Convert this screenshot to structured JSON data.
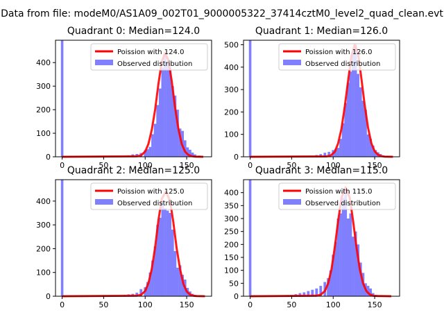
{
  "figure": {
    "suptitle": "Data from file: modeM0/AS1A09_002T01_9000005322_37414cztM0_level2_quad_clean.evt"
  },
  "chart_data": [
    {
      "type": "bar",
      "title": "Quadrant 0: Median=124.0",
      "xlim": [
        -8,
        180
      ],
      "ylim": [
        0,
        495
      ],
      "xticks": [
        0,
        50,
        100,
        150
      ],
      "yticks": [
        0,
        100,
        200,
        300,
        400
      ],
      "xlabel": "",
      "ylabel": "",
      "legend": {
        "position": "top-right",
        "entries": [
          {
            "label": "Poission with 124.0",
            "kind": "line",
            "color": "#ff0000"
          },
          {
            "label": "Observed distribution",
            "kind": "patch",
            "color": "#8080ff"
          }
        ]
      },
      "poisson_mean": 124.0,
      "spike": {
        "x": 0,
        "value": 495
      },
      "bins": [
        {
          "x": 80,
          "value": 6
        },
        {
          "x": 85,
          "value": 10
        },
        {
          "x": 90,
          "value": 12
        },
        {
          "x": 95,
          "value": 16
        },
        {
          "x": 100,
          "value": 28
        },
        {
          "x": 103,
          "value": 32
        },
        {
          "x": 106,
          "value": 42
        },
        {
          "x": 109,
          "value": 96
        },
        {
          "x": 112,
          "value": 140
        },
        {
          "x": 115,
          "value": 220
        },
        {
          "x": 118,
          "value": 290
        },
        {
          "x": 121,
          "value": 380
        },
        {
          "x": 124,
          "value": 440
        },
        {
          "x": 127,
          "value": 400
        },
        {
          "x": 130,
          "value": 380
        },
        {
          "x": 133,
          "value": 300
        },
        {
          "x": 136,
          "value": 260
        },
        {
          "x": 139,
          "value": 200
        },
        {
          "x": 142,
          "value": 120
        },
        {
          "x": 145,
          "value": 110
        },
        {
          "x": 148,
          "value": 70
        },
        {
          "x": 151,
          "value": 40
        },
        {
          "x": 154,
          "value": 30
        },
        {
          "x": 157,
          "value": 18
        },
        {
          "x": 160,
          "value": 10
        },
        {
          "x": 165,
          "value": 5
        }
      ],
      "series": [
        {
          "name": "Poission with 124.0",
          "type": "line",
          "color": "#ff0000",
          "x": [
            0,
            90,
            95,
            100,
            104,
            108,
            112,
            116,
            120,
            124,
            128,
            132,
            136,
            140,
            144,
            148,
            152,
            156,
            160,
            170
          ],
          "values": [
            0,
            2,
            6,
            22,
            55,
            115,
            200,
            310,
            405,
            440,
            410,
            320,
            210,
            120,
            55,
            22,
            8,
            3,
            1,
            0
          ]
        }
      ]
    },
    {
      "type": "bar",
      "title": "Quadrant 1: Median=126.0",
      "xlim": [
        -8,
        180
      ],
      "ylim": [
        0,
        520
      ],
      "xticks": [
        0,
        50,
        100,
        150
      ],
      "yticks": [
        0,
        100,
        200,
        300,
        400,
        500
      ],
      "xlabel": "",
      "ylabel": "",
      "legend": {
        "position": "top-right",
        "entries": [
          {
            "label": "Poission with 126.0",
            "kind": "line",
            "color": "#ff0000"
          },
          {
            "label": "Observed distribution",
            "kind": "patch",
            "color": "#8080ff"
          }
        ]
      },
      "poisson_mean": 126.0,
      "spike": {
        "x": 0,
        "value": 520
      },
      "bins": [
        {
          "x": 80,
          "value": 8
        },
        {
          "x": 85,
          "value": 12
        },
        {
          "x": 90,
          "value": 18
        },
        {
          "x": 95,
          "value": 22
        },
        {
          "x": 100,
          "value": 30
        },
        {
          "x": 103,
          "value": 35
        },
        {
          "x": 106,
          "value": 40
        },
        {
          "x": 109,
          "value": 80
        },
        {
          "x": 112,
          "value": 150
        },
        {
          "x": 115,
          "value": 240
        },
        {
          "x": 118,
          "value": 330
        },
        {
          "x": 121,
          "value": 380
        },
        {
          "x": 124,
          "value": 470
        },
        {
          "x": 127,
          "value": 500
        },
        {
          "x": 130,
          "value": 370
        },
        {
          "x": 133,
          "value": 310
        },
        {
          "x": 136,
          "value": 250
        },
        {
          "x": 139,
          "value": 210
        },
        {
          "x": 142,
          "value": 100
        },
        {
          "x": 145,
          "value": 80
        },
        {
          "x": 148,
          "value": 50
        },
        {
          "x": 151,
          "value": 30
        },
        {
          "x": 154,
          "value": 20
        },
        {
          "x": 157,
          "value": 12
        },
        {
          "x": 160,
          "value": 6
        },
        {
          "x": 165,
          "value": 3
        }
      ],
      "series": [
        {
          "name": "Poission with 126.0",
          "type": "line",
          "color": "#ff0000",
          "x": [
            0,
            92,
            97,
            102,
            106,
            110,
            114,
            118,
            122,
            126,
            130,
            134,
            138,
            142,
            146,
            150,
            154,
            158,
            162,
            172
          ],
          "values": [
            0,
            2,
            6,
            22,
            60,
            125,
            225,
            340,
            450,
            500,
            460,
            350,
            230,
            130,
            60,
            24,
            9,
            3,
            1,
            0
          ]
        }
      ]
    },
    {
      "type": "bar",
      "title": "Quadrant 2: Median=125.0",
      "xlim": [
        -8,
        180
      ],
      "ylim": [
        0,
        490
      ],
      "xticks": [
        0,
        50,
        100,
        150
      ],
      "yticks": [
        0,
        100,
        200,
        300,
        400
      ],
      "xlabel": "",
      "ylabel": "",
      "legend": {
        "position": "top-right",
        "entries": [
          {
            "label": "Poission with 125.0",
            "kind": "line",
            "color": "#ff0000"
          },
          {
            "label": "Observed distribution",
            "kind": "patch",
            "color": "#8080ff"
          }
        ]
      },
      "poisson_mean": 125.0,
      "spike": {
        "x": 0,
        "value": 490
      },
      "bins": [
        {
          "x": 75,
          "value": 5
        },
        {
          "x": 80,
          "value": 8
        },
        {
          "x": 85,
          "value": 10
        },
        {
          "x": 90,
          "value": 15
        },
        {
          "x": 95,
          "value": 30
        },
        {
          "x": 100,
          "value": 38
        },
        {
          "x": 103,
          "value": 60
        },
        {
          "x": 106,
          "value": 100
        },
        {
          "x": 109,
          "value": 150
        },
        {
          "x": 112,
          "value": 210
        },
        {
          "x": 115,
          "value": 300
        },
        {
          "x": 118,
          "value": 330
        },
        {
          "x": 121,
          "value": 400
        },
        {
          "x": 124,
          "value": 370
        },
        {
          "x": 127,
          "value": 360
        },
        {
          "x": 130,
          "value": 350
        },
        {
          "x": 133,
          "value": 280
        },
        {
          "x": 136,
          "value": 190
        },
        {
          "x": 139,
          "value": 120
        },
        {
          "x": 142,
          "value": 130
        },
        {
          "x": 145,
          "value": 90
        },
        {
          "x": 148,
          "value": 70
        },
        {
          "x": 151,
          "value": 35
        },
        {
          "x": 154,
          "value": 20
        },
        {
          "x": 157,
          "value": 10
        },
        {
          "x": 160,
          "value": 5
        }
      ],
      "series": [
        {
          "name": "Poission with 125.0",
          "type": "line",
          "color": "#ff0000",
          "x": [
            0,
            90,
            95,
            100,
            104,
            108,
            112,
            116,
            120,
            125,
            130,
            134,
            138,
            142,
            146,
            150,
            154,
            158,
            162,
            172
          ],
          "values": [
            0,
            2,
            6,
            22,
            55,
            115,
            205,
            320,
            410,
            440,
            400,
            310,
            200,
            115,
            52,
            20,
            7,
            2,
            1,
            0
          ]
        }
      ]
    },
    {
      "type": "bar",
      "title": "Quadrant 3: Median=115.0",
      "xlim": [
        -8,
        180
      ],
      "ylim": [
        0,
        450
      ],
      "xticks": [
        0,
        50,
        100,
        150
      ],
      "yticks": [
        0,
        50,
        100,
        150,
        200,
        250,
        300,
        350,
        400
      ],
      "xlabel": "",
      "ylabel": "",
      "legend": {
        "position": "top-right",
        "entries": [
          {
            "label": "Poission with 115.0",
            "kind": "line",
            "color": "#ff0000"
          },
          {
            "label": "Observed distribution",
            "kind": "patch",
            "color": "#8080ff"
          }
        ]
      },
      "poisson_mean": 115.0,
      "spike": {
        "x": 0,
        "value": 450
      },
      "bins": [
        {
          "x": 45,
          "value": 3
        },
        {
          "x": 50,
          "value": 5
        },
        {
          "x": 55,
          "value": 8
        },
        {
          "x": 60,
          "value": 12
        },
        {
          "x": 65,
          "value": 15
        },
        {
          "x": 70,
          "value": 20
        },
        {
          "x": 75,
          "value": 25
        },
        {
          "x": 80,
          "value": 30
        },
        {
          "x": 85,
          "value": 40
        },
        {
          "x": 90,
          "value": 55
        },
        {
          "x": 94,
          "value": 70
        },
        {
          "x": 97,
          "value": 100
        },
        {
          "x": 100,
          "value": 160
        },
        {
          "x": 103,
          "value": 210
        },
        {
          "x": 106,
          "value": 300
        },
        {
          "x": 109,
          "value": 320
        },
        {
          "x": 112,
          "value": 380
        },
        {
          "x": 115,
          "value": 410
        },
        {
          "x": 118,
          "value": 300
        },
        {
          "x": 121,
          "value": 320
        },
        {
          "x": 124,
          "value": 230
        },
        {
          "x": 127,
          "value": 250
        },
        {
          "x": 130,
          "value": 200
        },
        {
          "x": 133,
          "value": 130
        },
        {
          "x": 136,
          "value": 90
        },
        {
          "x": 139,
          "value": 50
        },
        {
          "x": 142,
          "value": 40
        },
        {
          "x": 145,
          "value": 30
        },
        {
          "x": 148,
          "value": 12
        },
        {
          "x": 152,
          "value": 5
        }
      ],
      "series": [
        {
          "name": "Poission with 115.0",
          "type": "line",
          "color": "#ff0000",
          "x": [
            0,
            80,
            85,
            90,
            94,
            98,
            102,
            106,
            110,
            115,
            120,
            124,
            128,
            132,
            136,
            140,
            144,
            148,
            152,
            170
          ],
          "values": [
            0,
            2,
            6,
            20,
            50,
            105,
            190,
            290,
            380,
            420,
            380,
            290,
            190,
            105,
            50,
            20,
            7,
            2,
            1,
            0
          ]
        }
      ]
    }
  ]
}
